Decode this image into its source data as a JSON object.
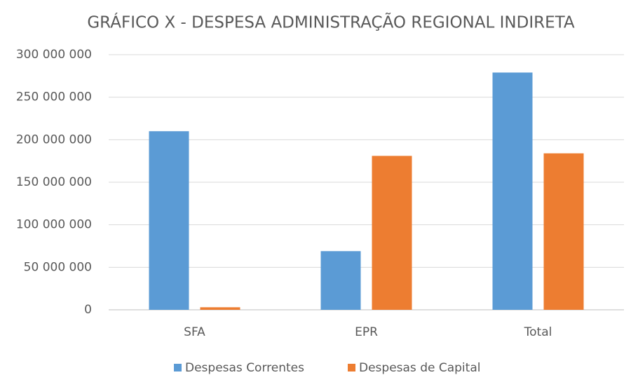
{
  "chart_data": {
    "type": "bar",
    "title": "GRÁFICO X - DESPESA ADMINISTRAÇÃO REGIONAL INDIRETA",
    "categories": [
      "SFA",
      "EPR",
      "Total"
    ],
    "series": [
      {
        "name": "Despesas Correntes",
        "color": "#5b9bd5",
        "values": [
          210000000,
          69000000,
          279000000
        ]
      },
      {
        "name": "Despesas de Capital",
        "color": "#ed7d31",
        "values": [
          3000000,
          181000000,
          184000000
        ]
      }
    ],
    "ylim": [
      0,
      300000000
    ],
    "yticks": [
      0,
      {
        "value": 50000000,
        "label": "50 000 000"
      },
      {
        "value": 100000000,
        "label": "100 000 000"
      },
      {
        "value": 150000000,
        "label": "150 000 000"
      },
      {
        "value": 200000000,
        "label": "200 000 000"
      },
      {
        "value": 250000000,
        "label": "250 000 000"
      },
      {
        "value": 300000000,
        "label": "300 000 000"
      }
    ],
    "grid": true,
    "legend": "bottom"
  }
}
